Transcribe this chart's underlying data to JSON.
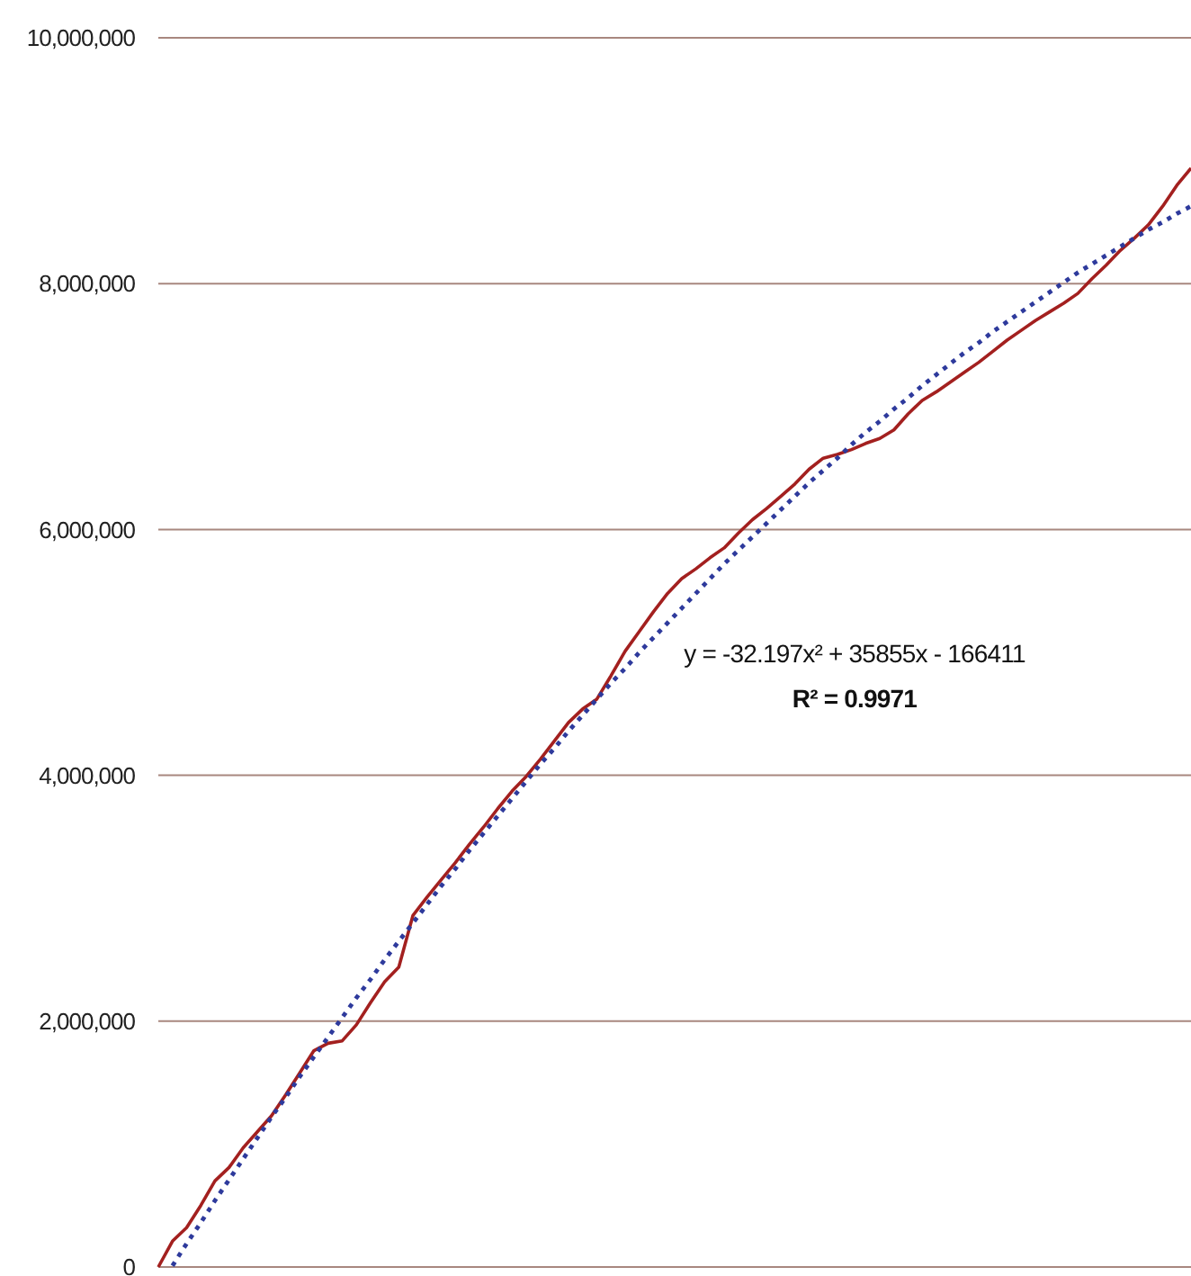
{
  "chart_data": {
    "type": "line",
    "categories": [
      null,
      null,
      null,
      null,
      null,
      null,
      null,
      null,
      null,
      null,
      null,
      null,
      null,
      null,
      null,
      null,
      null,
      null,
      null,
      null,
      null,
      null,
      null,
      null,
      null,
      null,
      null,
      null,
      null,
      null,
      null,
      null,
      null,
      null,
      null,
      null,
      null,
      null,
      null,
      null,
      null,
      null,
      null,
      null,
      null,
      null,
      null,
      null,
      null,
      null,
      null,
      null,
      null,
      null,
      null,
      null,
      null,
      null,
      null,
      null,
      null,
      null,
      null,
      null,
      null,
      null,
      null,
      null,
      null,
      null,
      null,
      null,
      null,
      null
    ],
    "series": [
      {
        "type": "line",
        "color": "#a3201f",
        "line_style": "solid",
        "values": [
          0,
          210000,
          320000,
          500000,
          700000,
          810000,
          970000,
          1100000,
          1230000,
          1400000,
          1580000,
          1760000,
          1820000,
          1840000,
          1970000,
          2150000,
          2320000,
          2440000,
          2860000,
          3010000,
          3150000,
          3290000,
          3440000,
          3580000,
          3730000,
          3870000,
          3990000,
          4130000,
          4280000,
          4430000,
          4540000,
          4620000,
          4810000,
          5010000,
          5170000,
          5330000,
          5480000,
          5600000,
          5680000,
          5770000,
          5850000,
          5970000,
          6080000,
          6170000,
          6270000,
          6370000,
          6490000,
          6580000,
          6610000,
          6650000,
          6700000,
          6740000,
          6810000,
          6940000,
          7050000,
          7120000,
          7200000,
          7280000,
          7360000,
          7450000,
          7540000,
          7620000,
          7700000,
          7770000,
          7840000,
          7920000,
          8040000,
          8150000,
          8270000,
          8370000,
          8480000,
          8630000,
          8800000,
          8940000
        ]
      },
      {
        "type": "line",
        "color": "#2e3a9c",
        "line_style": "dotted",
        "values": [
          null,
          10000,
          190000,
          360000,
          540000,
          710000,
          880000,
          1050000,
          1220000,
          1380000,
          1550000,
          1710000,
          1870000,
          2030000,
          2190000,
          2340000,
          2500000,
          2650000,
          2800000,
          2950000,
          3100000,
          3240000,
          3390000,
          3530000,
          3670000,
          3810000,
          3950000,
          4090000,
          4220000,
          4360000,
          4490000,
          4620000,
          4750000,
          4870000,
          5000000,
          5120000,
          5240000,
          5360000,
          5480000,
          5600000,
          5720000,
          5830000,
          5940000,
          6050000,
          6160000,
          6270000,
          6380000,
          6480000,
          6580000,
          6690000,
          6790000,
          6880000,
          6980000,
          7070000,
          7170000,
          7260000,
          7350000,
          7440000,
          7520000,
          7610000,
          7690000,
          7770000,
          7850000,
          7930000,
          8010000,
          8090000,
          8160000,
          8230000,
          8300000,
          8370000,
          8440000,
          8500000,
          8570000,
          8630000
        ]
      }
    ],
    "ylim": [
      0,
      10000000
    ],
    "yticks": [
      0,
      {
        "value": 2000000,
        "label": "2,000,000"
      },
      {
        "value": 4000000,
        "label": "4,000,000"
      },
      {
        "value": 6000000,
        "label": "6,000,000"
      },
      {
        "value": 8000000,
        "label": "8,000,000"
      },
      {
        "value": 10000000,
        "label": "10,000,000"
      }
    ],
    "grid": "y",
    "tick_labels": "y",
    "marker": "none",
    "annotations": [
      "y = -32.197x² + 35855x - 166411",
      "R² = 0.9971"
    ]
  }
}
